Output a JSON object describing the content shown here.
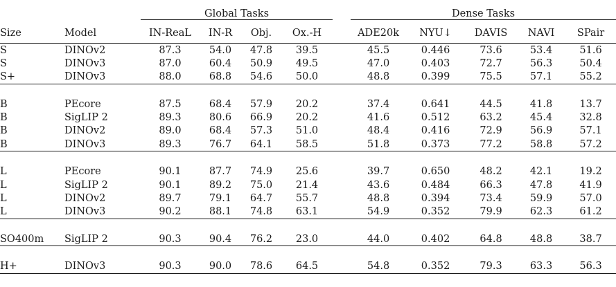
{
  "groups": {
    "global": "Global Tasks",
    "dense": "Dense Tasks"
  },
  "columns": [
    "Size",
    "Model",
    "IN-ReaL",
    "IN-R",
    "Obj.",
    "Ox.-H",
    "ADE20k",
    "NYU↓",
    "DAVIS",
    "NAVI",
    "SPair"
  ],
  "row_groups": [
    [
      [
        "S",
        "DINOv2",
        "87.3",
        "54.0",
        "47.8",
        "39.5",
        "45.5",
        "0.446",
        "73.6",
        "53.4",
        "51.6"
      ],
      [
        "S",
        "DINOv3",
        "87.0",
        "60.4",
        "50.9",
        "49.5",
        "47.0",
        "0.403",
        "72.7",
        "56.3",
        "50.4"
      ],
      [
        "S+",
        "DINOv3",
        "88.0",
        "68.8",
        "54.6",
        "50.0",
        "48.8",
        "0.399",
        "75.5",
        "57.1",
        "55.2"
      ]
    ],
    [
      [
        "B",
        "PEcore",
        "87.5",
        "68.4",
        "57.9",
        "20.2",
        "37.4",
        "0.641",
        "44.5",
        "41.8",
        "13.7"
      ],
      [
        "B",
        "SigLIP 2",
        "89.3",
        "80.6",
        "66.9",
        "20.2",
        "41.6",
        "0.512",
        "63.2",
        "45.4",
        "32.8"
      ],
      [
        "B",
        "DINOv2",
        "89.0",
        "68.4",
        "57.3",
        "51.0",
        "48.4",
        "0.416",
        "72.9",
        "56.9",
        "57.1"
      ],
      [
        "B",
        "DINOv3",
        "89.3",
        "76.7",
        "64.1",
        "58.5",
        "51.8",
        "0.373",
        "77.2",
        "58.8",
        "57.2"
      ]
    ],
    [
      [
        "L",
        "PEcore",
        "90.1",
        "87.7",
        "74.9",
        "25.6",
        "39.7",
        "0.650",
        "48.2",
        "42.1",
        "19.2"
      ],
      [
        "L",
        "SigLIP 2",
        "90.1",
        "89.2",
        "75.0",
        "21.4",
        "43.6",
        "0.484",
        "66.3",
        "47.8",
        "41.9"
      ],
      [
        "L",
        "DINOv2",
        "89.7",
        "79.1",
        "64.7",
        "55.7",
        "48.8",
        "0.394",
        "73.4",
        "59.9",
        "57.0"
      ],
      [
        "L",
        "DINOv3",
        "90.2",
        "88.1",
        "74.8",
        "63.1",
        "54.9",
        "0.352",
        "79.9",
        "62.3",
        "61.2"
      ]
    ],
    [
      [
        "SO400m",
        "SigLIP 2",
        "90.3",
        "90.4",
        "76.2",
        "23.0",
        "44.0",
        "0.402",
        "64.8",
        "48.8",
        "38.7"
      ]
    ],
    [
      [
        "H+",
        "DINOv3",
        "90.3",
        "90.0",
        "78.6",
        "64.5",
        "54.8",
        "0.352",
        "79.3",
        "63.3",
        "56.3"
      ]
    ]
  ]
}
